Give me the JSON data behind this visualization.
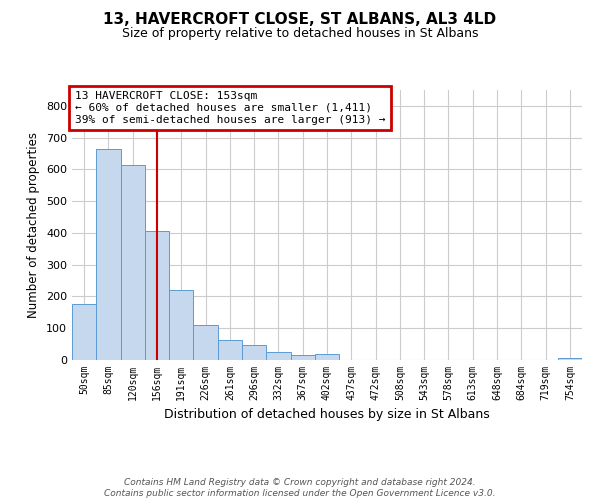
{
  "title": "13, HAVERCROFT CLOSE, ST ALBANS, AL3 4LD",
  "subtitle": "Size of property relative to detached houses in St Albans",
  "xlabel": "Distribution of detached houses by size in St Albans",
  "ylabel": "Number of detached properties",
  "bar_labels": [
    "50sqm",
    "85sqm",
    "120sqm",
    "156sqm",
    "191sqm",
    "226sqm",
    "261sqm",
    "296sqm",
    "332sqm",
    "367sqm",
    "402sqm",
    "437sqm",
    "472sqm",
    "508sqm",
    "543sqm",
    "578sqm",
    "613sqm",
    "648sqm",
    "684sqm",
    "719sqm",
    "754sqm"
  ],
  "bar_values": [
    175,
    665,
    615,
    405,
    220,
    110,
    62,
    47,
    25,
    15,
    18,
    0,
    0,
    0,
    0,
    0,
    0,
    0,
    0,
    0,
    5
  ],
  "bar_color": "#c5d8ed",
  "bar_edge_color": "#5b9bd5",
  "vline_x": 3,
  "vline_color": "#cc0000",
  "ylim": [
    0,
    850
  ],
  "yticks": [
    0,
    100,
    200,
    300,
    400,
    500,
    600,
    700,
    800
  ],
  "annotation_title": "13 HAVERCROFT CLOSE: 153sqm",
  "annotation_line1": "← 60% of detached houses are smaller (1,411)",
  "annotation_line2": "39% of semi-detached houses are larger (913) →",
  "annotation_box_color": "#cc0000",
  "footer_line1": "Contains HM Land Registry data © Crown copyright and database right 2024.",
  "footer_line2": "Contains public sector information licensed under the Open Government Licence v3.0.",
  "background_color": "#ffffff",
  "grid_color": "#cccccc"
}
